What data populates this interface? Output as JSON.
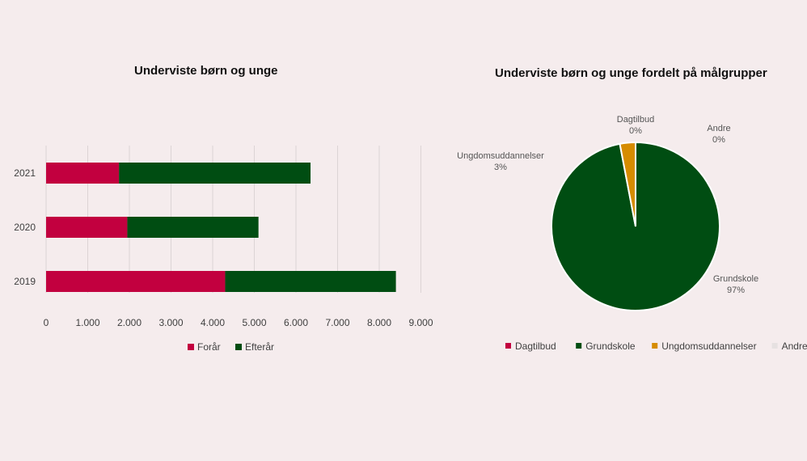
{
  "chart_data": [
    {
      "type": "bar",
      "orientation": "horizontal",
      "stacked": true,
      "title": "Underviste børn og unge",
      "categories": [
        "2021",
        "2020",
        "2019"
      ],
      "series": [
        {
          "name": "Forår",
          "values": [
            1750,
            1950,
            4300
          ],
          "color": "#c2003f"
        },
        {
          "name": "Efterår",
          "values": [
            4600,
            3150,
            4100
          ],
          "color": "#004d12"
        }
      ],
      "xlim": [
        0,
        9000
      ],
      "xticks": [
        "0",
        "1.000",
        "2.000",
        "3.000",
        "4.000",
        "5.000",
        "6.000",
        "7.000",
        "8.000",
        "9.000"
      ],
      "grid": true,
      "legend": "bottom"
    },
    {
      "type": "pie",
      "title": "Underviste børn og unge fordelt på målgrupper",
      "slices": [
        {
          "name": "Dagtilbud",
          "value": 0,
          "label": "0%",
          "color": "#c2003f"
        },
        {
          "name": "Grundskole",
          "value": 97,
          "label": "97%",
          "color": "#004d12"
        },
        {
          "name": "Ungdomsuddannelser",
          "value": 3,
          "label": "3%",
          "color": "#d68c00"
        },
        {
          "name": "Andre",
          "value": 0,
          "label": "0%",
          "color": "#e6e1e1"
        }
      ],
      "legend": "bottom"
    }
  ]
}
